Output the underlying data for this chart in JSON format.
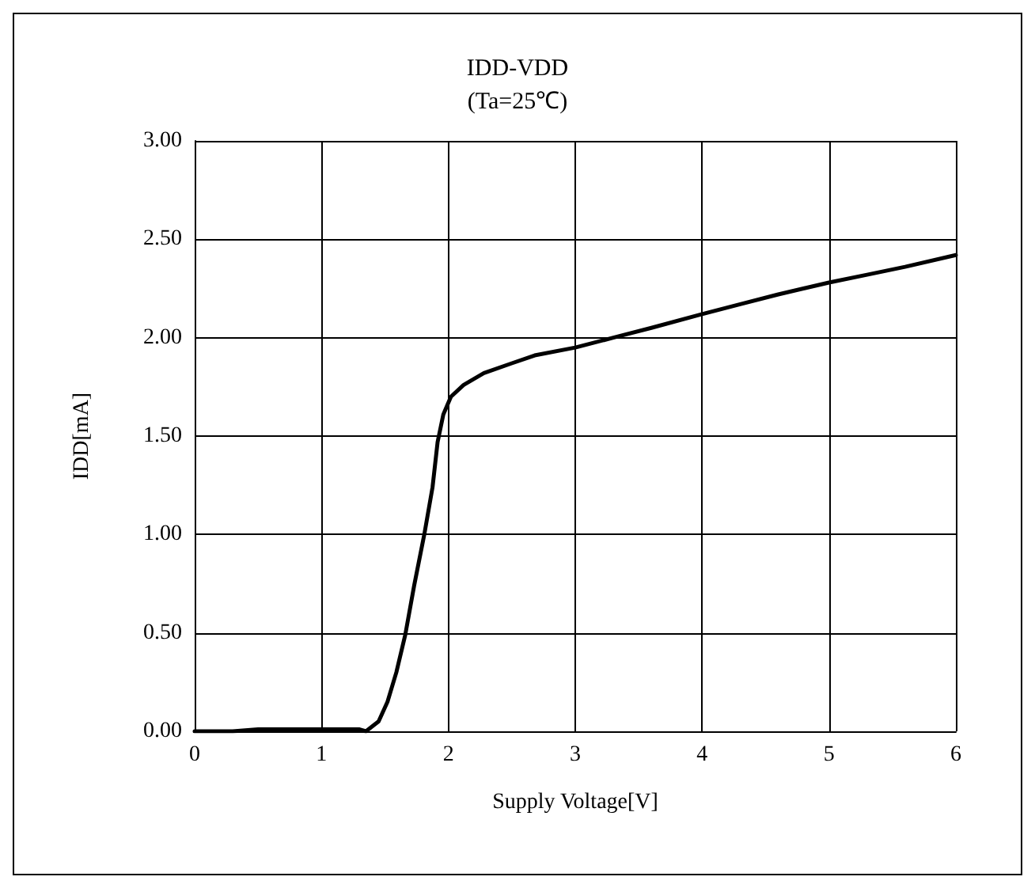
{
  "chart_data": {
    "type": "line",
    "title": "IDD-VDD",
    "subtitle": "(Ta=25℃)",
    "xlabel": "Supply Voltage[V]",
    "ylabel": "IDD[mA]",
    "xlim": [
      0,
      6
    ],
    "xticks": [
      0,
      1,
      2,
      3,
      4,
      5,
      6
    ],
    "ylim": [
      0,
      3
    ],
    "yticks": [
      {
        "value": 0,
        "label": "0.00"
      },
      {
        "value": 0.5,
        "label": "0.50"
      },
      {
        "value": 1,
        "label": "1.00"
      },
      {
        "value": 1.5,
        "label": "1.50"
      },
      {
        "value": 2,
        "label": "2.00"
      },
      {
        "value": 2.5,
        "label": "2.50"
      },
      {
        "value": 3,
        "label": "3.00"
      }
    ],
    "grid": true,
    "marker": "none",
    "line_style": "solid",
    "series": [
      {
        "color": "#000000",
        "x": [
          0,
          0.3,
          0.5,
          1.0,
          1.3,
          1.35,
          1.45,
          1.52,
          1.59,
          1.66,
          1.73,
          1.81,
          1.875,
          1.915,
          1.96,
          2.02,
          2.12,
          2.28,
          2.5,
          2.68,
          3.0,
          3.3,
          3.6,
          4.0,
          4.3,
          4.6,
          5.0,
          5.3,
          5.6,
          6.0
        ],
        "values": [
          0,
          0,
          0.01,
          0.01,
          0.01,
          0,
          0.05,
          0.15,
          0.3,
          0.49,
          0.74,
          1.0,
          1.24,
          1.47,
          1.61,
          1.7,
          1.76,
          1.82,
          1.87,
          1.91,
          1.95,
          2.0,
          2.05,
          2.12,
          2.17,
          2.22,
          2.28,
          2.32,
          2.36,
          2.42
        ]
      }
    ]
  }
}
